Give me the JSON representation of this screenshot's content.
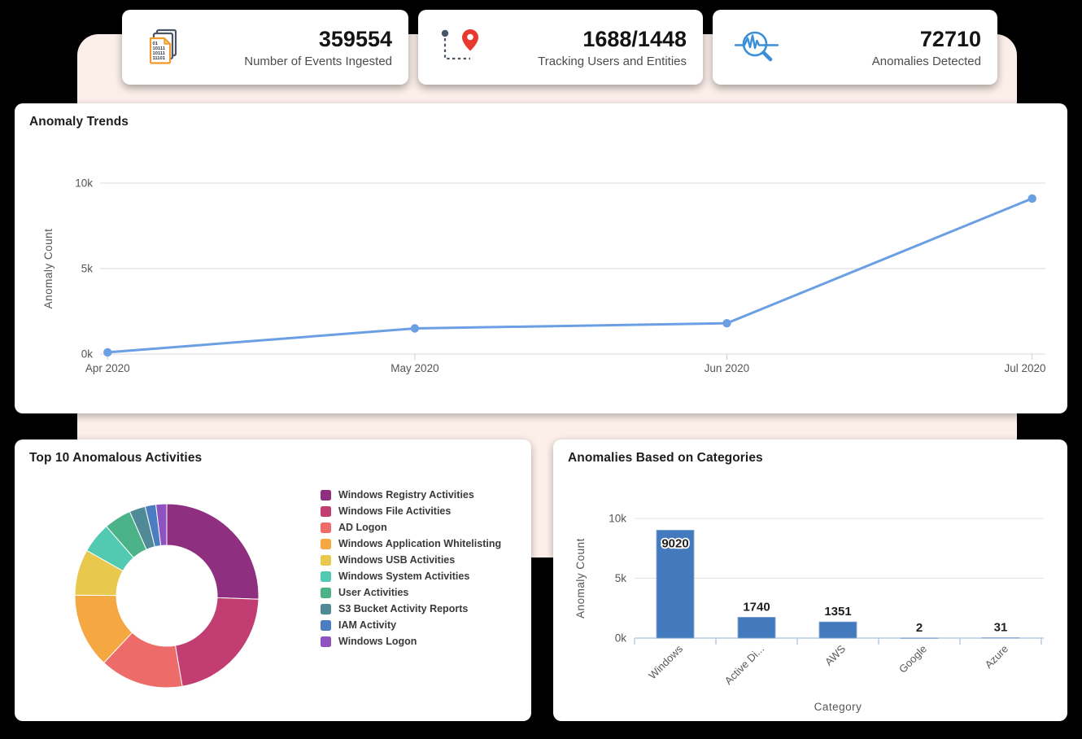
{
  "colors": {
    "page_background": "#000000",
    "backdrop_panel": "#FCEFEA",
    "card_background": "#FFFFFF",
    "title_text": "#1D1D1F",
    "value_text": "#141414",
    "label_text": "#4D4D4D",
    "axis_text": "#555555",
    "gridline": "#D8D8D8",
    "line_series": "#6B9FE4",
    "bar_fill": "#4379BD",
    "bar_axis": "#B9CDE6",
    "pin_red": "#E8392E",
    "magnifier_blue": "#3A8FD8",
    "document_orange": "#F0992E",
    "icon_dark": "#4A5568"
  },
  "cards": [
    {
      "value": "359554",
      "label": "Number of Events Ingested",
      "icon": "binary-documents-icon"
    },
    {
      "value": "1688/1448",
      "label": "Tracking Users and Entities",
      "icon": "route-pin-icon"
    },
    {
      "value": "72710",
      "label": "Anomalies Detected",
      "icon": "anomaly-search-icon"
    }
  ],
  "panels": {
    "trends": {
      "title": "Anomaly Trends"
    },
    "top_activities": {
      "title": "Top 10 Anomalous Activities"
    },
    "categories": {
      "title": "Anomalies Based on Categories"
    }
  },
  "chart_data": [
    {
      "type": "line",
      "title": "Anomaly Trends",
      "x": [
        "Apr 2020",
        "May 2020",
        "Jun 2020",
        "Jul 2020"
      ],
      "values": [
        100,
        1500,
        1800,
        9100
      ],
      "ylabel": "Anomaly Count",
      "yticks": [
        0,
        5000,
        10000
      ],
      "ytick_labels": [
        "0k",
        "5k",
        "10k"
      ],
      "ylim": [
        0,
        10000
      ],
      "grid": true,
      "legend_position": "none",
      "line_color": "#6B9FE4"
    },
    {
      "type": "pie",
      "title": "Top 10 Anomalous Activities",
      "donut": true,
      "legend_position": "right",
      "labels": [
        "Windows Registry Activities",
        "Windows File Activities",
        "AD Logon",
        "Windows Application Whitelisting",
        "Windows USB Activities",
        "Windows System Activities",
        "User Activities",
        "S3 Bucket Activity Reports",
        "IAM Activity",
        "Windows Logon"
      ],
      "values_pct": [
        25.6,
        21.7,
        14.7,
        13.1,
        8.1,
        5.4,
        4.8,
        2.8,
        1.9,
        1.9
      ],
      "colors": [
        "#8E2F7F",
        "#C23E72",
        "#ED6B68",
        "#F5A742",
        "#E8C84D",
        "#52C9B1",
        "#4CB287",
        "#4F8A96",
        "#4A7EC0",
        "#8F52C1"
      ]
    },
    {
      "type": "bar",
      "title": "Anomalies Based on Categories",
      "categories": [
        "Windows",
        "Active Di...",
        "AWS",
        "Google",
        "Azure"
      ],
      "values": [
        9020,
        1740,
        1351,
        2,
        31
      ],
      "xlabel": "Category",
      "ylabel": "Anomaly Count",
      "yticks": [
        0,
        5000,
        10000
      ],
      "ytick_labels": [
        "0k",
        "5k",
        "10k"
      ],
      "ylim": [
        0,
        10000
      ],
      "grid": true,
      "bar_color": "#4379BD"
    }
  ]
}
